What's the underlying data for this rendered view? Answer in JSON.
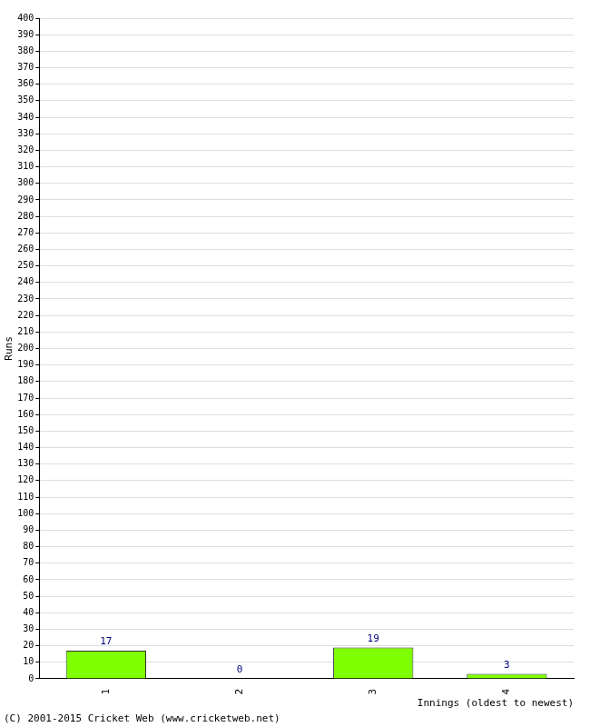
{
  "chart_data": {
    "type": "bar",
    "categories": [
      "1",
      "2",
      "3",
      "4"
    ],
    "values": [
      17,
      0,
      19,
      3
    ],
    "color": "#80ff00",
    "x_label": "Innings (oldest to newest)",
    "y_label": "Runs",
    "ylim": [
      0,
      400
    ],
    "yticks": [
      0,
      10,
      20,
      30,
      40,
      50,
      60,
      70,
      80,
      90,
      100,
      110,
      120,
      130,
      140,
      150,
      160,
      170,
      180,
      190,
      200,
      210,
      220,
      230,
      240,
      250,
      260,
      270,
      280,
      290,
      300,
      310,
      320,
      330,
      340,
      350,
      360,
      370,
      380,
      390,
      400
    ],
    "grid": true,
    "data_labels": true,
    "annotations": [
      "(C) 2001-2015 Cricket Web (www.cricketweb.net)"
    ]
  }
}
